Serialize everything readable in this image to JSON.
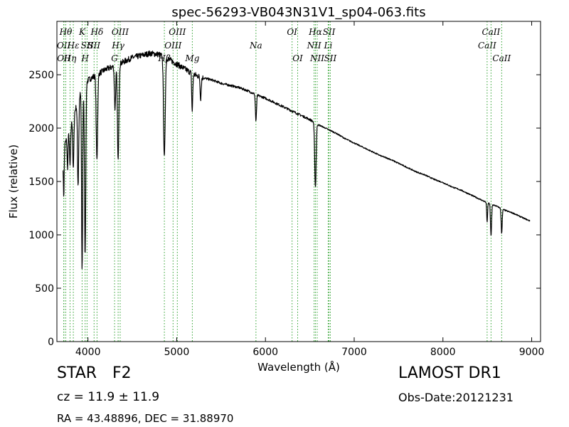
{
  "chart_data": {
    "type": "line",
    "title": "spec-56293-VB043N31V1_sp04-063.fits",
    "xlabel": "Wavelength (Å)",
    "ylabel": "Flux (relative)",
    "xlim": [
      3650,
      9100
    ],
    "ylim": [
      0,
      3000
    ],
    "xticks": [
      4000,
      5000,
      6000,
      7000,
      8000,
      9000
    ],
    "yticks": [
      0,
      500,
      1000,
      1500,
      2000,
      2500
    ],
    "grid": false,
    "line_color": "#000000",
    "marker_color": "#2ca02c",
    "continuum": {
      "x": [
        3720,
        3800,
        3900,
        4000,
        4100,
        4200,
        4300,
        4400,
        4500,
        4600,
        4700,
        4800,
        4900,
        5000,
        5100,
        5200,
        5300,
        5400,
        5500,
        5600,
        5700,
        5800,
        5900,
        6000,
        6100,
        6200,
        6300,
        6400,
        6500,
        6600,
        6700,
        6800,
        6900,
        7000,
        7100,
        7200,
        7300,
        7400,
        7500,
        7600,
        7700,
        7800,
        7900,
        8000,
        8100,
        8200,
        8300,
        8400,
        8500,
        8600,
        8700,
        8800,
        8900,
        8980
      ],
      "y": [
        1800,
        2000,
        2300,
        2450,
        2500,
        2550,
        2580,
        2620,
        2660,
        2680,
        2700,
        2690,
        2650,
        2600,
        2550,
        2500,
        2470,
        2450,
        2420,
        2400,
        2380,
        2350,
        2310,
        2280,
        2240,
        2200,
        2160,
        2120,
        2080,
        2030,
        1990,
        1950,
        1900,
        1860,
        1820,
        1780,
        1740,
        1710,
        1670,
        1630,
        1590,
        1560,
        1520,
        1490,
        1450,
        1420,
        1380,
        1340,
        1300,
        1270,
        1230,
        1200,
        1160,
        1130
      ]
    },
    "absorption": [
      {
        "x": 3727,
        "depth": 450,
        "width": 5
      },
      {
        "x": 3770,
        "depth": 300,
        "width": 5
      },
      {
        "x": 3798,
        "depth": 350,
        "width": 6
      },
      {
        "x": 3835,
        "depth": 500,
        "width": 6
      },
      {
        "x": 3889,
        "depth": 800,
        "width": 7
      },
      {
        "x": 3934,
        "depth": 1700,
        "width": 6
      },
      {
        "x": 3968,
        "depth": 1600,
        "width": 7
      },
      {
        "x": 4101,
        "depth": 800,
        "width": 8
      },
      {
        "x": 4305,
        "depth": 400,
        "width": 7
      },
      {
        "x": 4340,
        "depth": 900,
        "width": 8
      },
      {
        "x": 4861,
        "depth": 950,
        "width": 9
      },
      {
        "x": 5175,
        "depth": 350,
        "width": 6
      },
      {
        "x": 5270,
        "depth": 200,
        "width": 6
      },
      {
        "x": 5893,
        "depth": 250,
        "width": 6
      },
      {
        "x": 6563,
        "depth": 600,
        "width": 8
      },
      {
        "x": 8498,
        "depth": 180,
        "width": 5
      },
      {
        "x": 8542,
        "depth": 300,
        "width": 6
      },
      {
        "x": 8662,
        "depth": 230,
        "width": 6
      }
    ],
    "line_markers": [
      {
        "x": 3727,
        "label": "OII",
        "row": 2
      },
      {
        "x": 3729,
        "label": "OII",
        "row": 3
      },
      {
        "x": 3750,
        "label": "Hθ",
        "row": 1
      },
      {
        "x": 3798,
        "label": "Hη",
        "row": 3
      },
      {
        "x": 3835,
        "label": "Hε",
        "row": 2
      },
      {
        "x": 3934,
        "label": "K",
        "row": 1
      },
      {
        "x": 3968,
        "label": "H",
        "row": 3
      },
      {
        "x": 3990,
        "label": "SII",
        "row": 2
      },
      {
        "x": 4069,
        "label": "SII",
        "row": 2
      },
      {
        "x": 4102,
        "label": "Hδ",
        "row": 1
      },
      {
        "x": 4300,
        "label": "G",
        "row": 3
      },
      {
        "x": 4340,
        "label": "Hγ",
        "row": 2
      },
      {
        "x": 4363,
        "label": "OIII",
        "row": 1
      },
      {
        "x": 4861,
        "label": "Hβ",
        "row": 3
      },
      {
        "x": 4959,
        "label": "OIII",
        "row": 2
      },
      {
        "x": 5007,
        "label": "OIII",
        "row": 1
      },
      {
        "x": 5176,
        "label": "Mg",
        "row": 3
      },
      {
        "x": 5893,
        "label": "Na",
        "row": 2
      },
      {
        "x": 6300,
        "label": "OI",
        "row": 1
      },
      {
        "x": 6363,
        "label": "OI",
        "row": 3
      },
      {
        "x": 6548,
        "label": "NII",
        "row": 2
      },
      {
        "x": 6563,
        "label": "Hα",
        "row": 1
      },
      {
        "x": 6583,
        "label": "NII",
        "row": 3
      },
      {
        "x": 6707,
        "label": "Li",
        "row": 2
      },
      {
        "x": 6716,
        "label": "SII",
        "row": 1
      },
      {
        "x": 6731,
        "label": "SII",
        "row": 3
      },
      {
        "x": 8498,
        "label": "CaII",
        "row": 2
      },
      {
        "x": 8542,
        "label": "CaII",
        "row": 1
      },
      {
        "x": 8662,
        "label": "CaII",
        "row": 3
      }
    ]
  },
  "info": {
    "object_class": "STAR",
    "subclass": "F2",
    "cz_label": "cz = 11.9  ± 11.9",
    "radec": "RA = 43.48896, DEC = 31.88970",
    "survey": "LAMOST DR1",
    "obs_date": "Obs-Date:20121231"
  }
}
